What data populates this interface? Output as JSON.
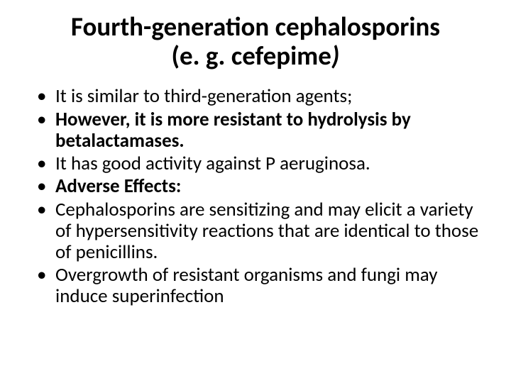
{
  "title": {
    "line1": "Fourth-generation cephalosporins",
    "line2_prefix": "(e. g. cefepime",
    "line2_suffix": ")"
  },
  "bullets": [
    {
      "text": "It is similar to third-generation agents;",
      "bold": false
    },
    {
      "text": "However, it is more resistant to hydrolysis by betalactamases.",
      "bold": true
    },
    {
      "text": "It has good activity against P aeruginosa.",
      "bold": false
    },
    {
      "text": "Adverse Effects:",
      "bold": true
    },
    {
      "text": "Cephalosporins are sensitizing and may elicit a variety of hypersensitivity reactions that are identical to those of penicillins.",
      "bold": false
    },
    {
      "text": "Overgrowth of resistant organisms and fungi may induce superinfection",
      "bold": false
    }
  ]
}
